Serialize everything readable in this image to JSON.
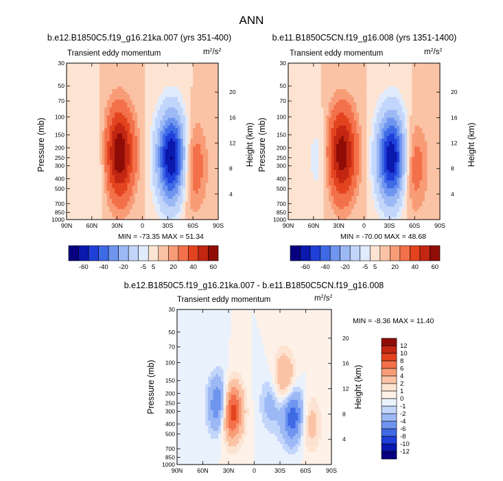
{
  "title": "ANN",
  "panels": [
    {
      "title": "b.e12.B1850C5.f19_g16.21ka.007 (yrs 351-400)",
      "field": "Transient eddy momentum",
      "units_base": "m",
      "units_sup1": "2",
      "units_mid": "/s",
      "units_sup2": "2",
      "stats": "MIN = -73.35  MAX = 51.34"
    },
    {
      "title": "b.e11.B1850C5CN.f19_g16.008 (yrs 1351-1400)",
      "field": "Transient eddy momentum",
      "units_base": "m",
      "units_sup1": "2",
      "units_mid": "/s",
      "units_sup2": "2",
      "stats": "MIN = -70.00  MAX = 48.68"
    },
    {
      "title": "b.e12.B1850C5.f19_g16.21ka.007 - b.e11.B1850C5CN.f19_g16.008",
      "field": "Transient eddy momentum",
      "units_base": "m",
      "units_sup1": "2",
      "units_mid": "/s",
      "units_sup2": "2",
      "stats": "MIN = -8.36  MAX = 11.40"
    }
  ],
  "axes": {
    "ylabel": "Pressure (mb)",
    "y2label": "Height (km)"
  },
  "colorbar_main": {
    "labels": [
      "-60",
      "-40",
      "-20",
      "-5",
      "5",
      "20",
      "40",
      "60"
    ],
    "colors": [
      "#08007f",
      "#0b18ad",
      "#1f3fd9",
      "#3f6ae6",
      "#6f95ef",
      "#9cb9f5",
      "#c2d5fa",
      "#e0ebfd",
      "#fde3d2",
      "#fbc3a5",
      "#f89c77",
      "#f3714a",
      "#e3441f",
      "#c32712",
      "#8f0d06"
    ]
  },
  "colorbar_diff": {
    "labels": [
      "12",
      "10",
      "8",
      "6",
      "4",
      "2",
      "1",
      "0",
      "-1",
      "-2",
      "-4",
      "-6",
      "-8",
      "-10",
      "-12"
    ],
    "colors": [
      "#8f0d06",
      "#c32712",
      "#e3441f",
      "#f3714a",
      "#f89c77",
      "#fbc3a5",
      "#fde3d2",
      "#fdf1e8",
      "#e9f1fd",
      "#c2d5fa",
      "#9cb9f5",
      "#6f95ef",
      "#3f6ae6",
      "#1f3fd9",
      "#0b18ad",
      "#08007f"
    ]
  },
  "chart_data": [
    {
      "type": "heatmap",
      "title": "b.e12.B1850C5.f19_g16.21ka.007 (yrs 351-400)",
      "subtitle": "Transient eddy momentum",
      "units": "m2/s2",
      "xlabel": "",
      "ylabel": "Pressure (mb)",
      "y2label": "Height (km)",
      "x_ticks": [
        "90N",
        "60N",
        "30N",
        "0",
        "30S",
        "60S",
        "90S"
      ],
      "y_ticks": [
        "30",
        "50",
        "70",
        "100",
        "150",
        "200",
        "250",
        "300",
        "400",
        "500",
        "700",
        "850",
        "1000"
      ],
      "y2_ticks": [
        "20",
        "16",
        "12",
        "8",
        "4"
      ],
      "min": -73.35,
      "max": 51.34,
      "features": [
        {
          "lat": 28,
          "p": 230,
          "value": 51
        },
        {
          "lat": -35,
          "p": 250,
          "value": -73
        },
        {
          "lat": -58,
          "p": 300,
          "value": 20
        },
        {
          "lat": 48,
          "p": 250,
          "value": -10
        }
      ]
    },
    {
      "type": "heatmap",
      "title": "b.e11.B1850C5CN.f19_g16.008 (yrs 1351-1400)",
      "subtitle": "Transient eddy momentum",
      "units": "m2/s2",
      "xlabel": "",
      "ylabel": "Pressure (mb)",
      "y2label": "Height (km)",
      "x_ticks": [
        "90N",
        "60N",
        "30N",
        "0",
        "30S",
        "60S",
        "90S"
      ],
      "y_ticks": [
        "30",
        "50",
        "70",
        "100",
        "150",
        "200",
        "250",
        "300",
        "400",
        "500",
        "700",
        "850",
        "1000"
      ],
      "y2_ticks": [
        "20",
        "16",
        "12",
        "8",
        "4"
      ],
      "min": -70.0,
      "max": 48.68,
      "features": [
        {
          "lat": 27,
          "p": 230,
          "value": 48
        },
        {
          "lat": -33,
          "p": 250,
          "value": -70
        },
        {
          "lat": -57,
          "p": 300,
          "value": 18
        },
        {
          "lat": 50,
          "p": 250,
          "value": -10
        }
      ]
    },
    {
      "type": "heatmap",
      "title": "b.e12.B1850C5.f19_g16.21ka.007 - b.e11.B1850C5CN.f19_g16.008",
      "subtitle": "Transient eddy momentum",
      "units": "m2/s2",
      "xlabel": "",
      "ylabel": "Pressure (mb)",
      "y2label": "Height (km)",
      "x_ticks": [
        "90N",
        "60N",
        "30N",
        "0",
        "30S",
        "60S",
        "90S"
      ],
      "y_ticks": [
        "30",
        "50",
        "70",
        "100",
        "150",
        "200",
        "250",
        "300",
        "400",
        "500",
        "700",
        "850",
        "1000"
      ],
      "y2_ticks": [
        "20",
        "16",
        "12",
        "8",
        "4"
      ],
      "min": -8.36,
      "max": 11.4,
      "features": [
        {
          "lat": 40,
          "p": 260,
          "value": -8
        },
        {
          "lat": 27,
          "p": 300,
          "value": 11
        },
        {
          "lat": -45,
          "p": 330,
          "value": -8
        },
        {
          "lat": -35,
          "p": 150,
          "value": 5
        },
        {
          "lat": -65,
          "p": 400,
          "value": 3
        },
        {
          "lat": -20,
          "p": 250,
          "value": -3
        }
      ]
    }
  ]
}
